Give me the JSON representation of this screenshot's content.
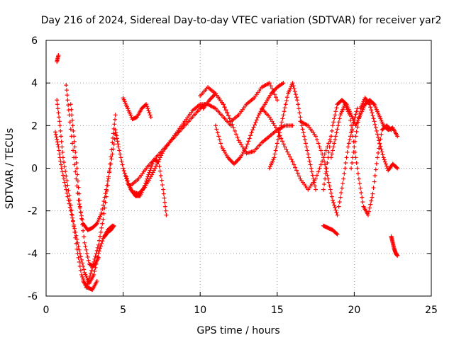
{
  "chart_data": {
    "type": "scatter",
    "title": "Day 216 of 2024, Sidereal Day-to-day VTEC variation (SDTVAR) for receiver yar2",
    "xlabel": "GPS time / hours",
    "ylabel": "SDTVAR / TECUs",
    "xlim": [
      0,
      25
    ],
    "ylim": [
      -6,
      6
    ],
    "xticks": [
      "0",
      "5",
      "10",
      "15",
      "20",
      "25"
    ],
    "yticks": [
      "-6",
      "-4",
      "-2",
      "0",
      "2",
      "4",
      "6"
    ],
    "grid": true,
    "marker": "+",
    "color": "#ff0000",
    "series": [
      {
        "name": "s1",
        "x": [
          0.7,
          0.9,
          1.1,
          1.4,
          1.7,
          2.0,
          2.3,
          2.6,
          2.8,
          3.1,
          3.4,
          3.7,
          4.0,
          4.3,
          4.5
        ],
        "y": [
          3.2,
          2.0,
          0.5,
          -0.8,
          -2.2,
          -3.8,
          -5.0,
          -5.6,
          -5.2,
          -4.4,
          -3.6,
          -2.4,
          -0.8,
          1.2,
          2.5
        ]
      },
      {
        "name": "s2",
        "x": [
          1.3,
          1.5,
          1.8,
          2.1,
          2.4,
          2.7,
          3.0,
          3.3,
          3.6,
          3.9,
          4.2,
          4.5
        ],
        "y": [
          3.9,
          2.5,
          0.5,
          -1.5,
          -2.6,
          -2.9,
          -2.8,
          -2.6,
          -2.1,
          -1.0,
          0.2,
          1.6
        ]
      },
      {
        "name": "s3",
        "x": [
          0.6,
          0.8,
          1.0,
          1.3,
          1.6,
          1.9,
          2.2,
          2.5,
          2.8,
          3.1,
          3.4,
          3.7,
          4.0,
          4.3
        ],
        "y": [
          1.7,
          1.0,
          0.0,
          -1.0,
          -2.0,
          -3.0,
          -4.0,
          -4.9,
          -5.4,
          -5.0,
          -4.0,
          -3.3,
          -2.9,
          -2.7
        ]
      },
      {
        "name": "s4",
        "x": [
          0.7,
          0.8
        ],
        "y": [
          5.0,
          5.3
        ]
      },
      {
        "name": "s5",
        "x": [
          1.6,
          1.8,
          2.0,
          2.2,
          2.5,
          2.8,
          3.1,
          3.4
        ],
        "y": [
          3.0,
          1.5,
          0.0,
          -1.8,
          -3.5,
          -4.5,
          -4.6,
          -4.2
        ]
      },
      {
        "name": "s6",
        "x": [
          5.0,
          5.3,
          5.6,
          5.9,
          6.2,
          6.5,
          6.8
        ],
        "y": [
          3.3,
          2.8,
          2.3,
          2.4,
          2.8,
          3.0,
          2.4
        ]
      },
      {
        "name": "s7",
        "x": [
          4.5,
          4.7,
          5.0,
          5.3,
          5.6,
          6.0,
          6.4,
          6.8,
          7.2,
          7.6,
          8.0,
          8.5,
          9.0,
          9.5,
          10.0,
          10.5,
          11.0,
          11.5,
          12.0
        ],
        "y": [
          1.8,
          1.0,
          0.0,
          -0.7,
          -1.1,
          -1.2,
          -0.9,
          -0.4,
          0.2,
          0.8,
          1.2,
          1.7,
          2.2,
          2.7,
          3.0,
          3.0,
          2.8,
          2.4,
          2.0
        ]
      },
      {
        "name": "s8",
        "x": [
          5.2,
          5.5,
          5.8,
          6.1,
          6.4,
          6.7,
          7.0,
          7.3,
          7.6,
          7.8
        ],
        "y": [
          -0.4,
          -1.0,
          -1.3,
          -1.3,
          -0.8,
          -0.2,
          0.4,
          0.3,
          -1.0,
          -2.2
        ]
      },
      {
        "name": "s9",
        "x": [
          5.5,
          6.0,
          6.5,
          7.0,
          7.5,
          8.0,
          8.5,
          9.0,
          9.5,
          10.0,
          10.3
        ],
        "y": [
          -0.8,
          -0.5,
          0.0,
          0.4,
          0.8,
          1.2,
          1.6,
          2.0,
          2.4,
          2.8,
          3.0
        ]
      },
      {
        "name": "s10",
        "x": [
          10.0,
          10.5,
          11.0,
          11.5,
          12.0,
          12.5,
          13.0,
          13.5,
          14.0,
          14.5,
          15.0,
          15.5,
          16.0
        ],
        "y": [
          3.4,
          3.8,
          3.5,
          3.0,
          2.2,
          1.3,
          0.7,
          0.8,
          1.2,
          1.5,
          1.8,
          2.0,
          2.0
        ]
      },
      {
        "name": "s11",
        "x": [
          10.2,
          10.6,
          11.0,
          11.5,
          12.0,
          12.5,
          13.0,
          13.5,
          14.0,
          14.5,
          15.0
        ],
        "y": [
          2.8,
          3.2,
          3.5,
          3.0,
          2.2,
          2.5,
          3.0,
          3.3,
          3.8,
          4.0,
          3.2
        ]
      },
      {
        "name": "s12",
        "x": [
          11.0,
          11.4,
          11.8,
          12.2,
          12.6,
          13.0,
          13.4,
          13.8,
          14.2,
          14.6,
          15.0,
          15.4
        ],
        "y": [
          2.0,
          1.0,
          0.5,
          0.2,
          0.5,
          1.0,
          1.8,
          2.5,
          3.0,
          3.5,
          3.8,
          4.0
        ]
      },
      {
        "name": "s13",
        "x": [
          14.5,
          14.8,
          15.1,
          15.4,
          15.7,
          16.0,
          16.3,
          16.6,
          16.9,
          17.2,
          17.5
        ],
        "y": [
          0.0,
          0.5,
          1.5,
          2.5,
          3.5,
          4.0,
          3.2,
          2.0,
          1.0,
          0.0,
          -1.0
        ]
      },
      {
        "name": "s14",
        "x": [
          14.0,
          14.5,
          15.0,
          15.5,
          16.0,
          16.5,
          17.0,
          17.5,
          18.0,
          18.5
        ],
        "y": [
          2.8,
          2.4,
          1.8,
          1.0,
          0.3,
          -0.5,
          -1.0,
          -0.5,
          0.5,
          1.5
        ]
      },
      {
        "name": "s15",
        "x": [
          16.5,
          17.0,
          17.5,
          18.0,
          18.3,
          18.6,
          18.9
        ],
        "y": [
          2.2,
          2.0,
          1.5,
          0.5,
          -0.5,
          -1.5,
          -2.2
        ]
      },
      {
        "name": "s16",
        "x": [
          18.0,
          18.3,
          18.6,
          18.9,
          19.2,
          19.5,
          19.8,
          20.1,
          20.4,
          20.7,
          21.0,
          21.3,
          21.6,
          21.9,
          22.2,
          22.5,
          22.8
        ],
        "y": [
          -1.0,
          0.5,
          2.0,
          3.0,
          3.2,
          3.0,
          2.5,
          2.0,
          2.5,
          3.0,
          3.2,
          3.0,
          2.5,
          2.0,
          1.8,
          1.9,
          1.5
        ]
      },
      {
        "name": "s17",
        "x": [
          18.5,
          18.8,
          19.1,
          19.4,
          19.7,
          20.0,
          20.3,
          20.6,
          20.9,
          21.2,
          21.5,
          21.8,
          22.1,
          22.4
        ],
        "y": [
          0.5,
          1.5,
          2.5,
          3.0,
          2.5,
          1.0,
          -0.5,
          -1.8,
          -2.2,
          -1.2,
          0.5,
          1.8,
          2.0,
          1.8
        ]
      },
      {
        "name": "s18",
        "x": [
          19.8,
          20.1,
          20.4,
          20.7,
          21.0,
          21.3,
          21.6,
          21.9,
          22.2,
          22.5,
          22.8
        ],
        "y": [
          0.0,
          1.5,
          2.8,
          3.3,
          3.0,
          2.2,
          1.3,
          0.5,
          -0.1,
          0.2,
          0.0
        ]
      },
      {
        "name": "s19",
        "x": [
          19.0,
          19.3,
          19.6,
          19.9,
          20.2
        ],
        "y": [
          -1.8,
          -0.5,
          1.0,
          2.0,
          2.8
        ]
      },
      {
        "name": "s20",
        "x": [
          18.0,
          18.3,
          18.6,
          18.9
        ],
        "y": [
          -2.7,
          -2.8,
          -2.9,
          -3.1
        ]
      },
      {
        "name": "s21",
        "x": [
          22.4,
          22.5,
          22.6,
          22.7,
          22.8
        ],
        "y": [
          -3.2,
          -3.5,
          -3.8,
          -4.0,
          -4.1
        ]
      },
      {
        "name": "s22",
        "x": [
          3.8,
          4.0,
          4.2,
          4.4
        ],
        "y": [
          -3.2,
          -3.0,
          -2.9,
          -2.7
        ]
      },
      {
        "name": "s23",
        "x": [
          2.4,
          2.7,
          3.0,
          3.3
        ],
        "y": [
          -5.3,
          -5.6,
          -5.7,
          -5.3
        ]
      }
    ]
  }
}
